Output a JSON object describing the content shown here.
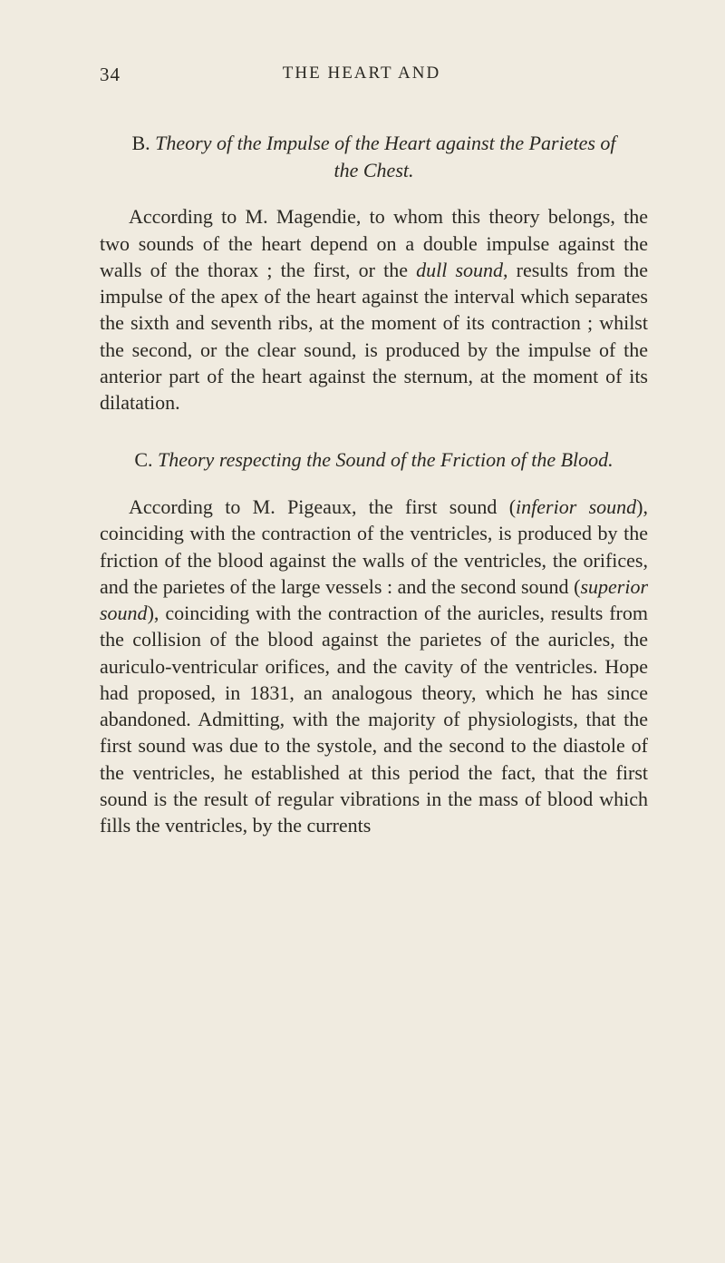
{
  "page_number": "34",
  "running_title": "THE HEART AND",
  "section_b": {
    "lead": "B. ",
    "title_italic_1": "Theory of the Impulse of the Heart against the Parietes of the Chest.",
    "para_pre_1": "According to M. Magendie, to whom this theory belongs, the two sounds of the heart depend on a double impulse against the walls of the thorax ; the first, or the ",
    "para_it_1": "dull sound",
    "para_post_1": ", results from the impulse of the apex of the heart against the interval which separates the sixth and seventh ribs, at the moment of its contraction ; whilst the second, or the clear sound, is produced by the impulse of the anterior part of the heart against the sternum, at the moment of its dilatation."
  },
  "section_c": {
    "lead": "C. ",
    "title_italic_1": "Theory respecting the Sound of the Friction of the Blood.",
    "para_pre_1": "According to M. Pigeaux, the first sound (",
    "para_it_1": "infe­rior sound",
    "para_mid_1": "), coinciding with the contraction of the ventricles, is produced by the friction of the blood against the walls of the ventricles, the orifices, and the parietes of the large vessels : and the second sound (",
    "para_it_2": "superior sound",
    "para_post_1": "), coinciding with the con­traction of the auricles, results from the collision of the blood against the parietes of the auricles, the auriculo-ventricular orifices, and the cavity of the ventricles. Hope had proposed, in 1831, an analogous theory, which he has since abandoned. Admitting, with the majority of physiologists, that the first sound was due to the systole, and the second to the diastole of the ventricles, he esta­blished at this period the fact, that the first sound is the result of regular vibrations in the mass of blood which fills the ventricles, by the currents"
  }
}
